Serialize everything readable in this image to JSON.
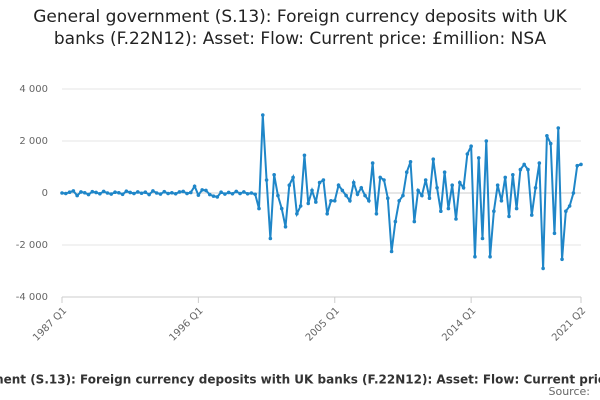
{
  "chart_data": {
    "type": "line",
    "title": "General government (S.13): Foreign currency deposits with UK banks (F.22N12): Asset: Flow: Current price: £million: NSA",
    "source_label": "Source:",
    "categories": [
      "1987 Q1",
      null,
      null,
      null,
      null,
      null,
      null,
      null,
      null,
      null,
      null,
      null,
      null,
      null,
      null,
      null,
      null,
      null,
      null,
      null,
      null,
      null,
      null,
      null,
      null,
      null,
      null,
      null,
      null,
      null,
      null,
      null,
      null,
      null,
      null,
      null,
      "1996 Q1",
      null,
      null,
      null,
      null,
      null,
      null,
      null,
      null,
      null,
      null,
      null,
      null,
      null,
      null,
      null,
      null,
      null,
      null,
      null,
      null,
      null,
      null,
      null,
      null,
      null,
      null,
      null,
      null,
      null,
      null,
      null,
      null,
      null,
      null,
      null,
      "2005 Q1",
      null,
      null,
      null,
      null,
      null,
      null,
      null,
      null,
      null,
      null,
      null,
      null,
      null,
      null,
      null,
      null,
      null,
      null,
      null,
      null,
      null,
      null,
      null,
      null,
      null,
      null,
      null,
      null,
      null,
      null,
      null,
      null,
      null,
      null,
      null,
      "2014 Q1",
      null,
      null,
      null,
      null,
      null,
      null,
      null,
      null,
      null,
      null,
      null,
      null,
      null,
      null,
      null,
      null,
      null,
      null,
      null,
      null,
      null,
      null,
      null,
      null,
      null,
      null,
      null,
      null,
      "2021 Q2"
    ],
    "series": [
      {
        "name": "General government (S.13): Foreign currency deposits with UK banks (F.22N12): Asset: Flow: Current price: £million: NSA",
        "color": "#1f86c8",
        "values": [
          0,
          -20,
          30,
          80,
          -100,
          40,
          10,
          -60,
          50,
          20,
          -30,
          60,
          0,
          -40,
          30,
          10,
          -50,
          70,
          20,
          -20,
          40,
          -10,
          30,
          -60,
          80,
          0,
          -40,
          50,
          -20,
          10,
          -30,
          40,
          60,
          -20,
          20,
          260,
          -80,
          120,
          100,
          -60,
          -120,
          -150,
          30,
          -40,
          20,
          -30,
          60,
          -20,
          40,
          -30,
          0,
          -50,
          -600,
          3000,
          500,
          -1750,
          700,
          -100,
          -600,
          -1300,
          300,
          600,
          -800,
          -500,
          1450,
          -400,
          100,
          -350,
          400,
          500,
          -800,
          -300,
          -300,
          300,
          100,
          -100,
          -300,
          400,
          -50,
          200,
          -100,
          -300,
          1150,
          -800,
          600,
          500,
          -200,
          -2250,
          -1100,
          -300,
          -100,
          800,
          1200,
          -1100,
          100,
          -100,
          500,
          -200,
          1300,
          200,
          -700,
          800,
          -600,
          300,
          -1000,
          400,
          200,
          1500,
          1800,
          -2450,
          1350,
          -1750,
          2000,
          -2450,
          -700,
          300,
          -300,
          600,
          -900,
          700,
          -600,
          900,
          1100,
          900,
          -850,
          200,
          1150,
          -2900,
          2200,
          1900,
          -1550,
          2500,
          -2550,
          -700,
          -500,
          0,
          1050,
          1100
        ]
      }
    ],
    "ylim": [
      -4000,
      4000
    ],
    "yticks": [
      {
        "value": -4000,
        "label": "-4 000"
      },
      {
        "value": -2000,
        "label": "-2 000"
      },
      0,
      {
        "value": 2000,
        "label": "2 000"
      },
      {
        "value": 4000,
        "label": "4 000"
      }
    ],
    "grid": true
  }
}
